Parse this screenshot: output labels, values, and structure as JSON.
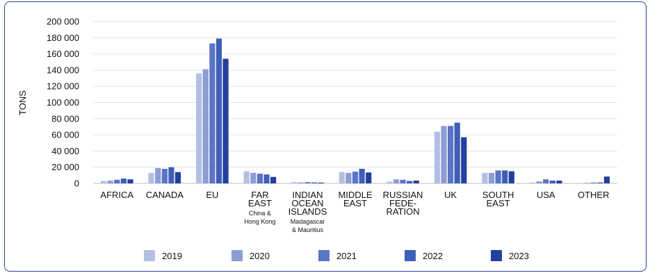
{
  "chart_data": {
    "type": "bar",
    "ylabel": "TONS",
    "xlabel": "",
    "ylim": [
      0,
      200000
    ],
    "ytick_values": [
      0,
      20000,
      40000,
      60000,
      80000,
      100000,
      120000,
      140000,
      160000,
      180000,
      200000
    ],
    "ytick_labels": [
      "0",
      "20 000",
      "40 000",
      "60 000",
      "80 000",
      "100 000",
      "120 000",
      "140 000",
      "160 000",
      "180 000",
      "200 000"
    ],
    "grid": true,
    "legend_position": "bottom",
    "categories": [
      {
        "lines": [
          "AFRICA"
        ],
        "note": []
      },
      {
        "lines": [
          "CANADA"
        ],
        "note": []
      },
      {
        "lines": [
          "EU"
        ],
        "note": []
      },
      {
        "lines": [
          "FAR",
          "EAST"
        ],
        "note": [
          "China &",
          "Hong Kong"
        ]
      },
      {
        "lines": [
          "INDIAN",
          "OCEAN",
          "ISLANDS"
        ],
        "note": [
          "Madagascar",
          "& Mauritius"
        ]
      },
      {
        "lines": [
          "MIDDLE",
          "EAST"
        ],
        "note": []
      },
      {
        "lines": [
          "RUSSIAN",
          "FEDE-",
          "RATION"
        ],
        "note": []
      },
      {
        "lines": [
          "UK"
        ],
        "note": []
      },
      {
        "lines": [
          "SOUTH",
          "EAST"
        ],
        "note": []
      },
      {
        "lines": [
          "USA"
        ],
        "note": []
      },
      {
        "lines": [
          "OTHER"
        ],
        "note": []
      }
    ],
    "series": [
      {
        "name": "2019",
        "color": "#b4bfe3",
        "values": [
          3000,
          13000,
          136000,
          15000,
          1500,
          14000,
          2000,
          64000,
          13000,
          1000,
          500
        ]
      },
      {
        "name": "2020",
        "color": "#8c9dd4",
        "values": [
          3500,
          19000,
          141000,
          13000,
          1200,
          13000,
          5000,
          71000,
          13000,
          2500,
          700
        ]
      },
      {
        "name": "2021",
        "color": "#5b74c6",
        "values": [
          4500,
          18000,
          173000,
          12000,
          1500,
          14500,
          4500,
          71000,
          16000,
          5000,
          1000
        ]
      },
      {
        "name": "2022",
        "color": "#3e5fb8",
        "values": [
          6000,
          20000,
          179000,
          11000,
          1200,
          18000,
          3000,
          75000,
          16000,
          3500,
          1200
        ]
      },
      {
        "name": "2023",
        "color": "#243f9e",
        "values": [
          5000,
          14000,
          154000,
          8000,
          1000,
          13500,
          3500,
          57000,
          15000,
          3500,
          8500
        ]
      }
    ]
  }
}
